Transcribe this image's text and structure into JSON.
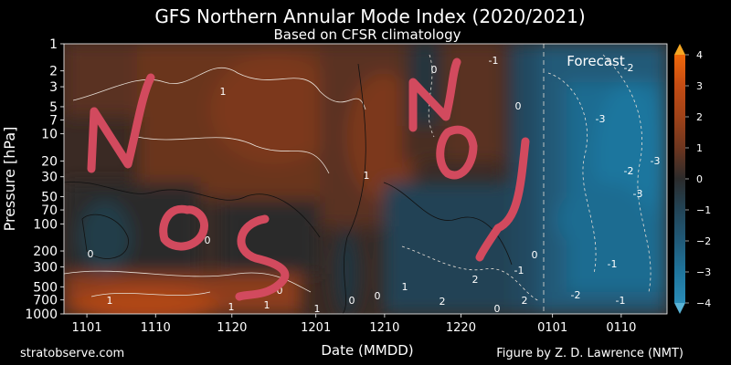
{
  "chart_data": {
    "type": "heatmap",
    "title": "GFS Northern Annular Mode Index (2020/2021)",
    "subtitle": "Based on CFSR climatology",
    "xlabel": "Date (MMDD)",
    "ylabel": "Pressure [hPa]",
    "x_tick_labels": [
      "1101",
      "1110",
      "1120",
      "1201",
      "1210",
      "1220",
      "0101",
      "0110"
    ],
    "y_tick_labels": [
      "1",
      "2",
      "3",
      "5",
      "7",
      "10",
      "20",
      "30",
      "50",
      "70",
      "100",
      "200",
      "300",
      "500",
      "700",
      "1000"
    ],
    "y_scale": "log",
    "y_reversed": true,
    "colorbar": {
      "range": [
        -4,
        4
      ],
      "tick_labels": [
        "4",
        "3",
        "2",
        "1",
        "0",
        "−1",
        "−2",
        "−3",
        "−4"
      ],
      "colors_high": [
        "#2b2b2b",
        "#3a2a24",
        "#4a2d22",
        "#5a3121",
        "#6b351f",
        "#7c391d",
        "#8d3d1b",
        "#9f4218",
        "#b14716",
        "#c54c13",
        "#da5310",
        "#ea5c0d",
        "#f0680a"
      ],
      "colors_low": [
        "#2b2b2b",
        "#243036",
        "#233640",
        "#223c4a",
        "#224355",
        "#214a60",
        "#20526c",
        "#205a78",
        "#1f6384",
        "#1f6c91",
        "#1f769e",
        "#2081ab",
        "#2a8cb8"
      ]
    },
    "annotations": [
      "Forecast"
    ],
    "contour_labels": [
      "1",
      "-1",
      "0",
      "0",
      "0",
      "0",
      "1",
      "0",
      "0",
      "1",
      "0",
      "1",
      "1",
      "1",
      "0",
      "2",
      "1",
      "-1",
      "0",
      "2",
      "2",
      "-2",
      "-2",
      "-3",
      "-2",
      "-3",
      "-3",
      "-1",
      "-1"
    ],
    "forecast_start": "0105",
    "handwritten_overlay": "NOSNDJ"
  },
  "footer": {
    "left": "stratobserve.com",
    "right": "Figure by Z. D. Lawrence (NMT)"
  }
}
